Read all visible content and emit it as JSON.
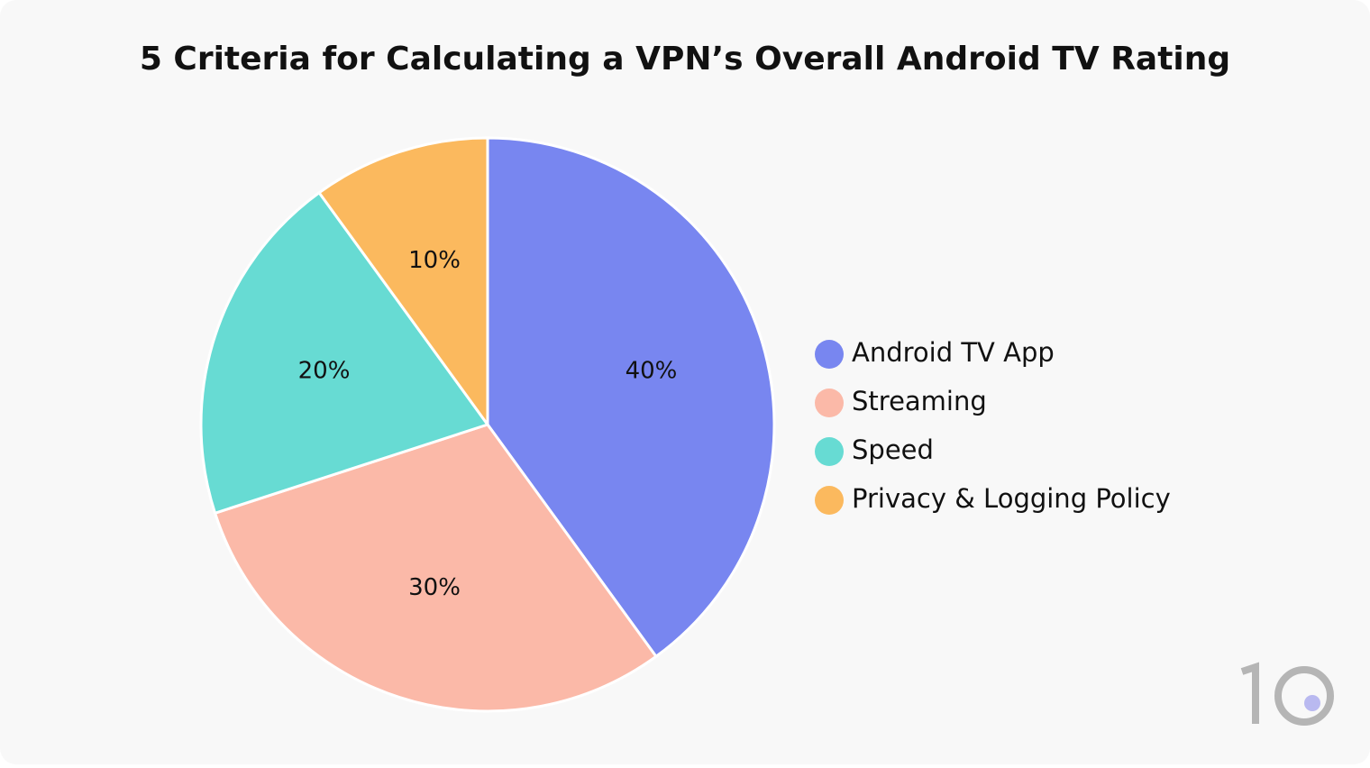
{
  "chart_data": {
    "type": "pie",
    "title": "5 Criteria for Calculating a VPN’s Overall Android TV Rating",
    "categories": [
      "Android TV App",
      "Streaming",
      "Speed",
      "Privacy & Logging Policy"
    ],
    "values": [
      40,
      30,
      20,
      10
    ],
    "value_labels": [
      "40%",
      "30%",
      "20%",
      "10%"
    ],
    "colors": [
      "#7886f0",
      "#fbb9a8",
      "#67dbd3",
      "#fbb95e"
    ]
  }
}
